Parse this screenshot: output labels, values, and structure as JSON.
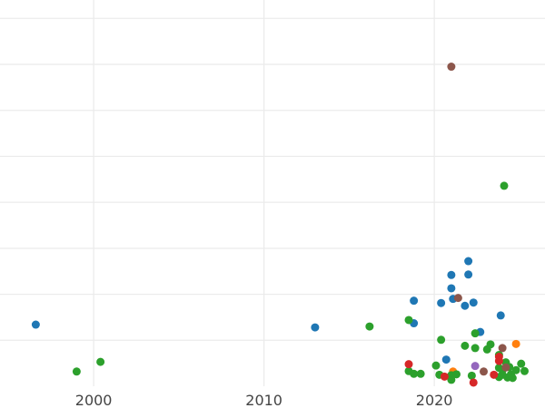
{
  "chart_data": {
    "type": "scatter",
    "title": "",
    "xlabel": "",
    "ylabel": "",
    "grid": true,
    "legend": "none",
    "xlim": [
      1994.5,
      2026.5
    ],
    "ylim": [
      -0.3,
      8.1
    ],
    "x_ticks": [
      2000,
      2010,
      2020
    ],
    "y_gridlines": [
      0.7,
      1.7,
      2.7,
      3.7,
      4.7,
      5.7,
      6.7,
      7.7
    ],
    "colors": {
      "blue": "#1f77b4",
      "orange": "#ff7f0e",
      "green": "#2ca02c",
      "red": "#d62728",
      "purple": "#9467bd",
      "brown": "#8c564b"
    },
    "series": [
      {
        "color": "#1f77b4",
        "points": [
          [
            1996.6,
            1.04
          ],
          [
            2013.0,
            0.98
          ],
          [
            2018.8,
            1.07
          ],
          [
            2018.8,
            1.56
          ],
          [
            2020.4,
            1.51
          ],
          [
            2020.7,
            0.28
          ],
          [
            2021.0,
            1.83
          ],
          [
            2021.0,
            2.12
          ],
          [
            2021.1,
            1.6
          ],
          [
            2021.8,
            1.45
          ],
          [
            2022.0,
            2.13
          ],
          [
            2022.0,
            2.42
          ],
          [
            2022.3,
            1.52
          ],
          [
            2022.7,
            0.88
          ],
          [
            2023.9,
            1.24
          ]
        ]
      },
      {
        "color": "#ff7f0e",
        "points": [
          [
            2021.1,
            0.02
          ],
          [
            2024.8,
            0.62
          ]
        ]
      },
      {
        "color": "#2ca02c",
        "points": [
          [
            1999.0,
            0.02
          ],
          [
            2000.4,
            0.23
          ],
          [
            2016.2,
            1.0
          ],
          [
            2018.5,
            1.14
          ],
          [
            2018.5,
            0.03
          ],
          [
            2018.8,
            -0.03
          ],
          [
            2019.2,
            -0.03
          ],
          [
            2020.1,
            0.15
          ],
          [
            2020.3,
            -0.05
          ],
          [
            2020.4,
            0.71
          ],
          [
            2021.0,
            -0.06
          ],
          [
            2021.0,
            -0.16
          ],
          [
            2021.3,
            -0.04
          ],
          [
            2021.8,
            0.58
          ],
          [
            2022.2,
            -0.07
          ],
          [
            2022.4,
            0.85
          ],
          [
            2022.4,
            0.53
          ],
          [
            2023.1,
            0.5
          ],
          [
            2023.3,
            0.61
          ],
          [
            2023.8,
            0.38
          ],
          [
            2023.8,
            0.1
          ],
          [
            2023.8,
            -0.1
          ],
          [
            2024.0,
            0.05
          ],
          [
            2024.0,
            -0.05
          ],
          [
            2024.1,
            4.06
          ],
          [
            2024.2,
            0.22
          ],
          [
            2024.3,
            -0.11
          ],
          [
            2024.4,
            0.12
          ],
          [
            2024.5,
            -0.04
          ],
          [
            2024.6,
            -0.12
          ],
          [
            2024.8,
            0.05
          ],
          [
            2025.1,
            0.19
          ],
          [
            2025.3,
            0.03
          ]
        ]
      },
      {
        "color": "#d62728",
        "points": [
          [
            2018.5,
            0.18
          ],
          [
            2020.6,
            -0.09
          ],
          [
            2022.3,
            -0.22
          ],
          [
            2023.5,
            -0.05
          ],
          [
            2023.8,
            0.25
          ],
          [
            2023.8,
            0.34
          ]
        ]
      },
      {
        "color": "#9467bd",
        "points": [
          [
            2022.4,
            0.14
          ]
        ]
      },
      {
        "color": "#8c564b",
        "points": [
          [
            2021.0,
            6.65
          ],
          [
            2021.4,
            1.62
          ],
          [
            2022.9,
            0.02
          ],
          [
            2024.0,
            0.53
          ],
          [
            2024.2,
            0.11
          ]
        ]
      }
    ]
  }
}
